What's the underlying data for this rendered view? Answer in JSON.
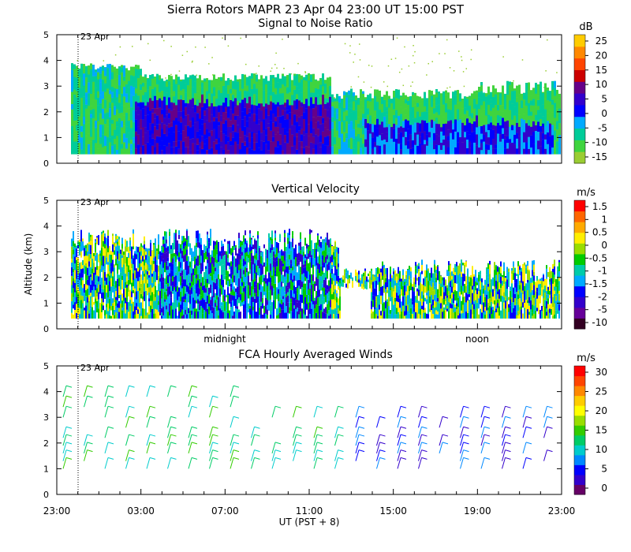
{
  "figure": {
    "title_line": "Sierra Rotors   MAPR 23 Apr 04   23:00 UT   15:00   PST",
    "shared_ylabel": "Altitude (km)",
    "shared_xlabel": "UT   (PST + 8)",
    "day_marker": "23 Apr",
    "x_ticks": [
      "23:00",
      "03:00",
      "07:00",
      "11:00",
      "15:00",
      "19:00",
      "23:00"
    ],
    "mid_axis_labels": [
      "midnight",
      "noon"
    ]
  },
  "chart_data": [
    {
      "type": "heatmap",
      "title": "Signal to Noise Ratio",
      "ylim": [
        0,
        5
      ],
      "y_ticks": [
        "0",
        "1",
        "2",
        "3",
        "4",
        "5"
      ],
      "colorbar": {
        "unit": "dB",
        "tick_labels": [
          "25",
          "20",
          "15",
          "10",
          "5",
          "0",
          "-5",
          "-10",
          "-15"
        ],
        "colors": [
          "#9acd32",
          "#3fd43f",
          "#00cc99",
          "#00aaff",
          "#0000ff",
          "#3300cc",
          "#660088",
          "#cc0000",
          "#ff4400",
          "#ff8800",
          "#ffcc00"
        ]
      }
    },
    {
      "type": "heatmap",
      "title": "Vertical Velocity",
      "ylim": [
        0,
        5
      ],
      "y_ticks": [
        "0",
        "1",
        "2",
        "3",
        "4",
        "5"
      ],
      "colorbar": {
        "unit": "m/s",
        "tick_labels": [
          "1.5",
          "1",
          "0.5",
          "0",
          "-0.5",
          "-1",
          "-1.5",
          "-2",
          "-5",
          "-10"
        ],
        "colors": [
          "#330022",
          "#660099",
          "#3300cc",
          "#0000ff",
          "#00aaff",
          "#00ccaa",
          "#00cc00",
          "#99dd00",
          "#ffee00",
          "#ffaa00",
          "#ff6600",
          "#ff0000"
        ]
      }
    },
    {
      "type": "scatter",
      "title": "FCA Hourly Averaged Winds",
      "ylim": [
        0,
        5
      ],
      "y_ticks": [
        "0",
        "1",
        "2",
        "3",
        "4",
        "5"
      ],
      "colorbar": {
        "unit": "m/s",
        "tick_labels": [
          "30",
          "25",
          "20",
          "15",
          "10",
          "5",
          "0"
        ],
        "colors": [
          "#660066",
          "#3300cc",
          "#0000ff",
          "#0088ff",
          "#00cccc",
          "#00cc66",
          "#33cc00",
          "#99dd00",
          "#ffff00",
          "#ffcc00",
          "#ff8800",
          "#ff4400",
          "#ff0000"
        ]
      }
    }
  ]
}
